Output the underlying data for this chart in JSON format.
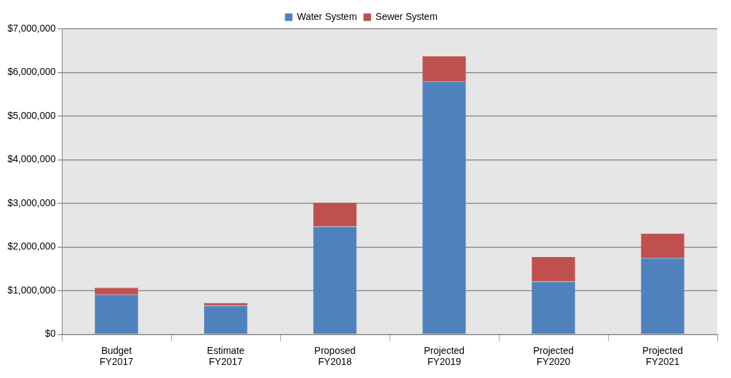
{
  "chart_data": {
    "type": "bar",
    "stacked": true,
    "categories": [
      "Budget\nFY2017",
      "Estimate\nFY2017",
      "Proposed\nFY2018",
      "Projected\nFY2019",
      "Projected\nFY2020",
      "Projected\nFY2021"
    ],
    "series": [
      {
        "name": "Water System",
        "color": "#4f81bd",
        "values": [
          910000,
          660000,
          2470000,
          5790000,
          1210000,
          1750000
        ]
      },
      {
        "name": "Sewer System",
        "color": "#c0504d",
        "values": [
          160000,
          60000,
          550000,
          580000,
          560000,
          560000
        ]
      }
    ],
    "ylim": [
      0,
      7000000
    ],
    "yticks": [
      {
        "value": 0,
        "label": "$0"
      },
      {
        "value": 1000000,
        "label": "$1,000,000"
      },
      {
        "value": 2000000,
        "label": "$2,000,000"
      },
      {
        "value": 3000000,
        "label": "$3,000,000"
      },
      {
        "value": 4000000,
        "label": "$4,000,000"
      },
      {
        "value": 5000000,
        "label": "$5,000,000"
      },
      {
        "value": 6000000,
        "label": "$6,000,000"
      },
      {
        "value": 7000000,
        "label": "$7,000,000"
      }
    ],
    "grid": "y",
    "legend": "top"
  }
}
